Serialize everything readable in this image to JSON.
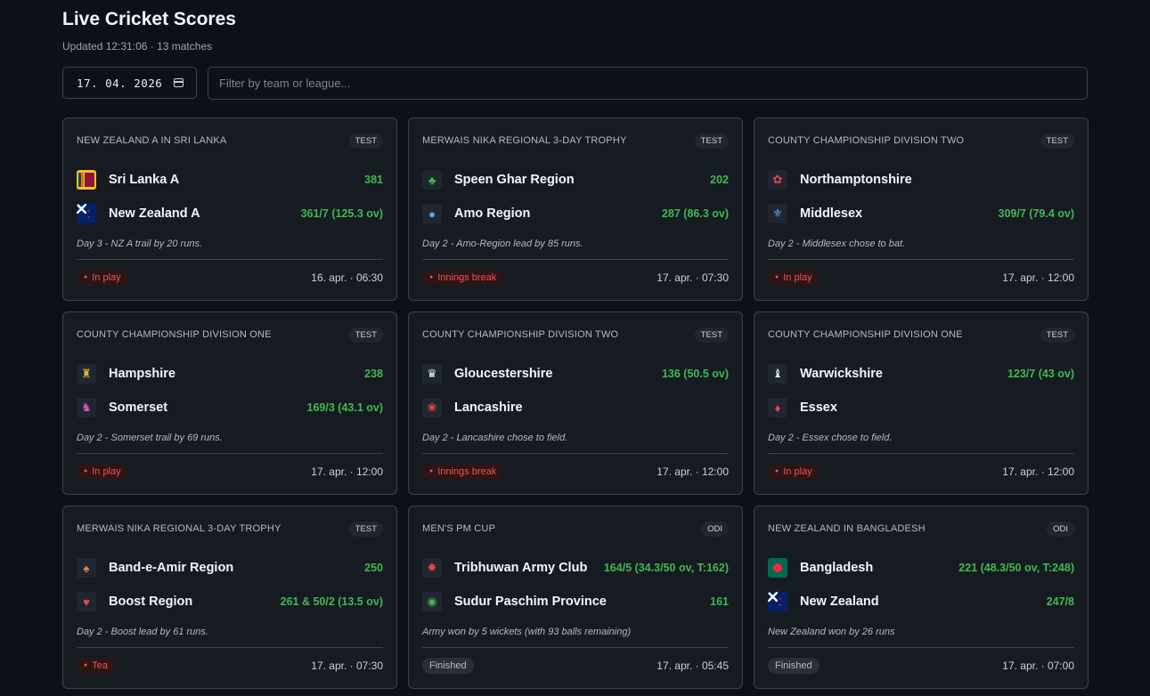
{
  "header": {
    "title": "Live Cricket Scores",
    "subtitle": "Updated 12:31:06 · 13 matches"
  },
  "filters": {
    "date_value": "17. 04. 2026",
    "search_placeholder": "Filter by team or league..."
  },
  "matches": [
    {
      "league": "NEW ZEALAND A IN SRI LANKA",
      "format": "TEST",
      "teams": [
        {
          "name": "Sri Lanka A",
          "score": "381",
          "icon": "sri-lanka-flag-icon"
        },
        {
          "name": "New Zealand A",
          "score": "361/7 (125.3 ov)",
          "icon": "new-zealand-flag-icon"
        }
      ],
      "note": "Day 3 - NZ A trail by 20 runs.",
      "status": "In play",
      "time": "16. apr. · 06:30"
    },
    {
      "league": "MERWAIS NIKA REGIONAL 3-DAY TROPHY",
      "format": "TEST",
      "teams": [
        {
          "name": "Speen Ghar Region",
          "score": "202",
          "icon": "speen-ghar-crest-icon"
        },
        {
          "name": "Amo Region",
          "score": "287 (86.3 ov)",
          "icon": "amo-region-crest-icon"
        }
      ],
      "note": "Day 2 - Amo-Region lead by 85 runs.",
      "status": "Innings break",
      "time": "17. apr. · 07:30"
    },
    {
      "league": "COUNTY CHAMPIONSHIP DIVISION TWO",
      "format": "TEST",
      "teams": [
        {
          "name": "Northamptonshire",
          "score": "",
          "icon": "northamptonshire-crest-icon"
        },
        {
          "name": "Middlesex",
          "score": "309/7 (79.4 ov)",
          "icon": "middlesex-crest-icon"
        }
      ],
      "note": "Day 2 - Middlesex chose to bat.",
      "status": "In play",
      "time": "17. apr. · 12:00"
    },
    {
      "league": "COUNTY CHAMPIONSHIP DIVISION ONE",
      "format": "TEST",
      "teams": [
        {
          "name": "Hampshire",
          "score": "238",
          "icon": "hampshire-crest-icon"
        },
        {
          "name": "Somerset",
          "score": "169/3 (43.1 ov)",
          "icon": "somerset-crest-icon"
        }
      ],
      "note": "Day 2 - Somerset trail by 69 runs.",
      "status": "In play",
      "time": "17. apr. · 12:00"
    },
    {
      "league": "COUNTY CHAMPIONSHIP DIVISION TWO",
      "format": "TEST",
      "teams": [
        {
          "name": "Gloucestershire",
          "score": "136 (50.5 ov)",
          "icon": "gloucestershire-crest-icon"
        },
        {
          "name": "Lancashire",
          "score": "",
          "icon": "lancashire-rose-icon"
        }
      ],
      "note": "Day 2 - Lancashire chose to field.",
      "status": "Innings break",
      "time": "17. apr. · 12:00"
    },
    {
      "league": "COUNTY CHAMPIONSHIP DIVISION ONE",
      "format": "TEST",
      "teams": [
        {
          "name": "Warwickshire",
          "score": "123/7 (43 ov)",
          "icon": "warwickshire-bear-icon"
        },
        {
          "name": "Essex",
          "score": "",
          "icon": "essex-crest-icon"
        }
      ],
      "note": "Day 2 - Essex chose to field.",
      "status": "In play",
      "time": "17. apr. · 12:00"
    },
    {
      "league": "MERWAIS NIKA REGIONAL 3-DAY TROPHY",
      "format": "TEST",
      "teams": [
        {
          "name": "Band-e-Amir Region",
          "score": "250",
          "icon": "band-e-amir-crest-icon"
        },
        {
          "name": "Boost Region",
          "score": "261 & 50/2 (13.5 ov)",
          "icon": "boost-region-crest-icon"
        }
      ],
      "note": "Day 2 - Boost lead by 61 runs.",
      "status": "Tea",
      "time": "17. apr. · 07:30"
    },
    {
      "league": "MEN'S PM CUP",
      "format": "ODI",
      "teams": [
        {
          "name": "Tribhuwan Army Club",
          "score": "164/5 (34.3/50 ov, T:162)",
          "icon": "tribhuwan-army-crest-icon"
        },
        {
          "name": "Sudur Paschim Province",
          "score": "161",
          "icon": "sudur-paschim-crest-icon"
        }
      ],
      "note": "Army won by 5 wickets (with 93 balls remaining)",
      "status": "Finished",
      "time": "17. apr. · 05:45"
    },
    {
      "league": "NEW ZEALAND IN BANGLADESH",
      "format": "ODI",
      "teams": [
        {
          "name": "Bangladesh",
          "score": "221 (48.3/50 ov, T:248)",
          "icon": "bangladesh-flag-icon"
        },
        {
          "name": "New Zealand",
          "score": "247/8",
          "icon": "new-zealand-flag-icon"
        }
      ],
      "note": "New Zealand won by 26 runs",
      "status": "Finished",
      "time": "17. apr. · 07:00"
    }
  ]
}
